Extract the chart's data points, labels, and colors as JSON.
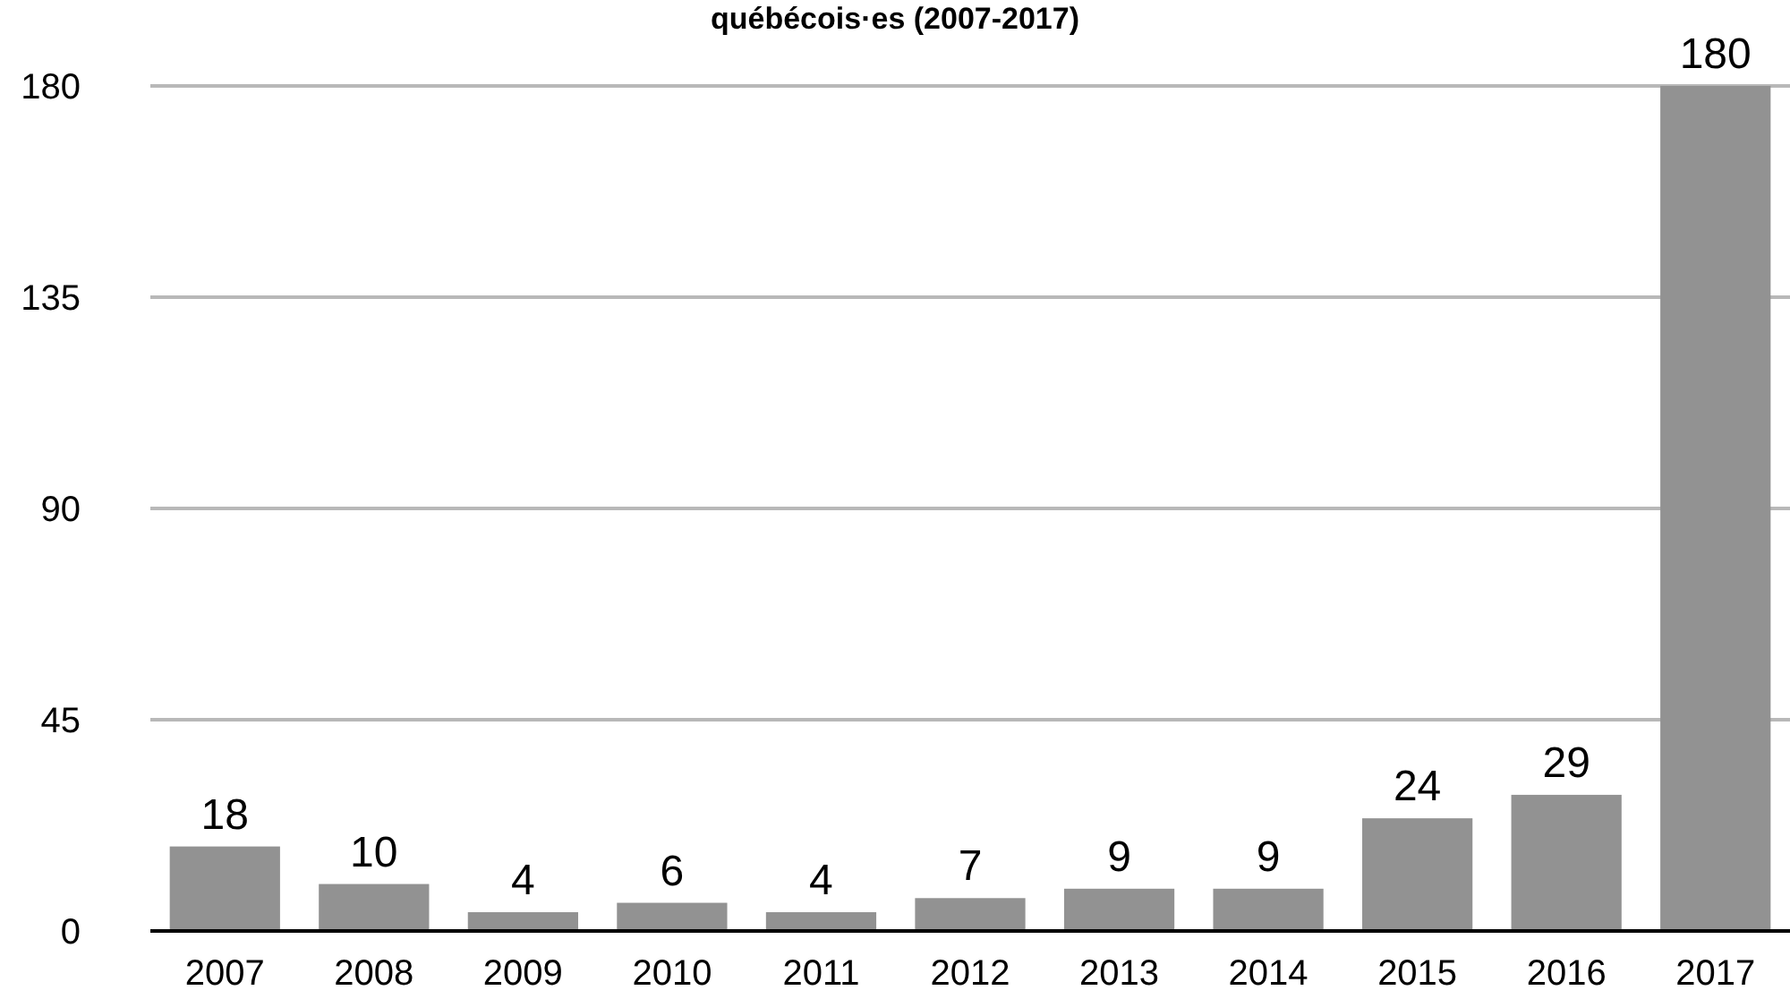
{
  "chart_data": {
    "type": "bar",
    "title": "québécois·es (2007-2017)",
    "categories": [
      "2007",
      "2008",
      "2009",
      "2010",
      "2011",
      "2012",
      "2013",
      "2014",
      "2015",
      "2016",
      "2017"
    ],
    "values": [
      18,
      10,
      4,
      6,
      4,
      7,
      9,
      9,
      24,
      29,
      180
    ],
    "color": "#929292",
    "ylim": [
      0,
      180
    ],
    "yticks": [
      0,
      45,
      90,
      135,
      180
    ],
    "grid": "y",
    "data_labels": true
  }
}
